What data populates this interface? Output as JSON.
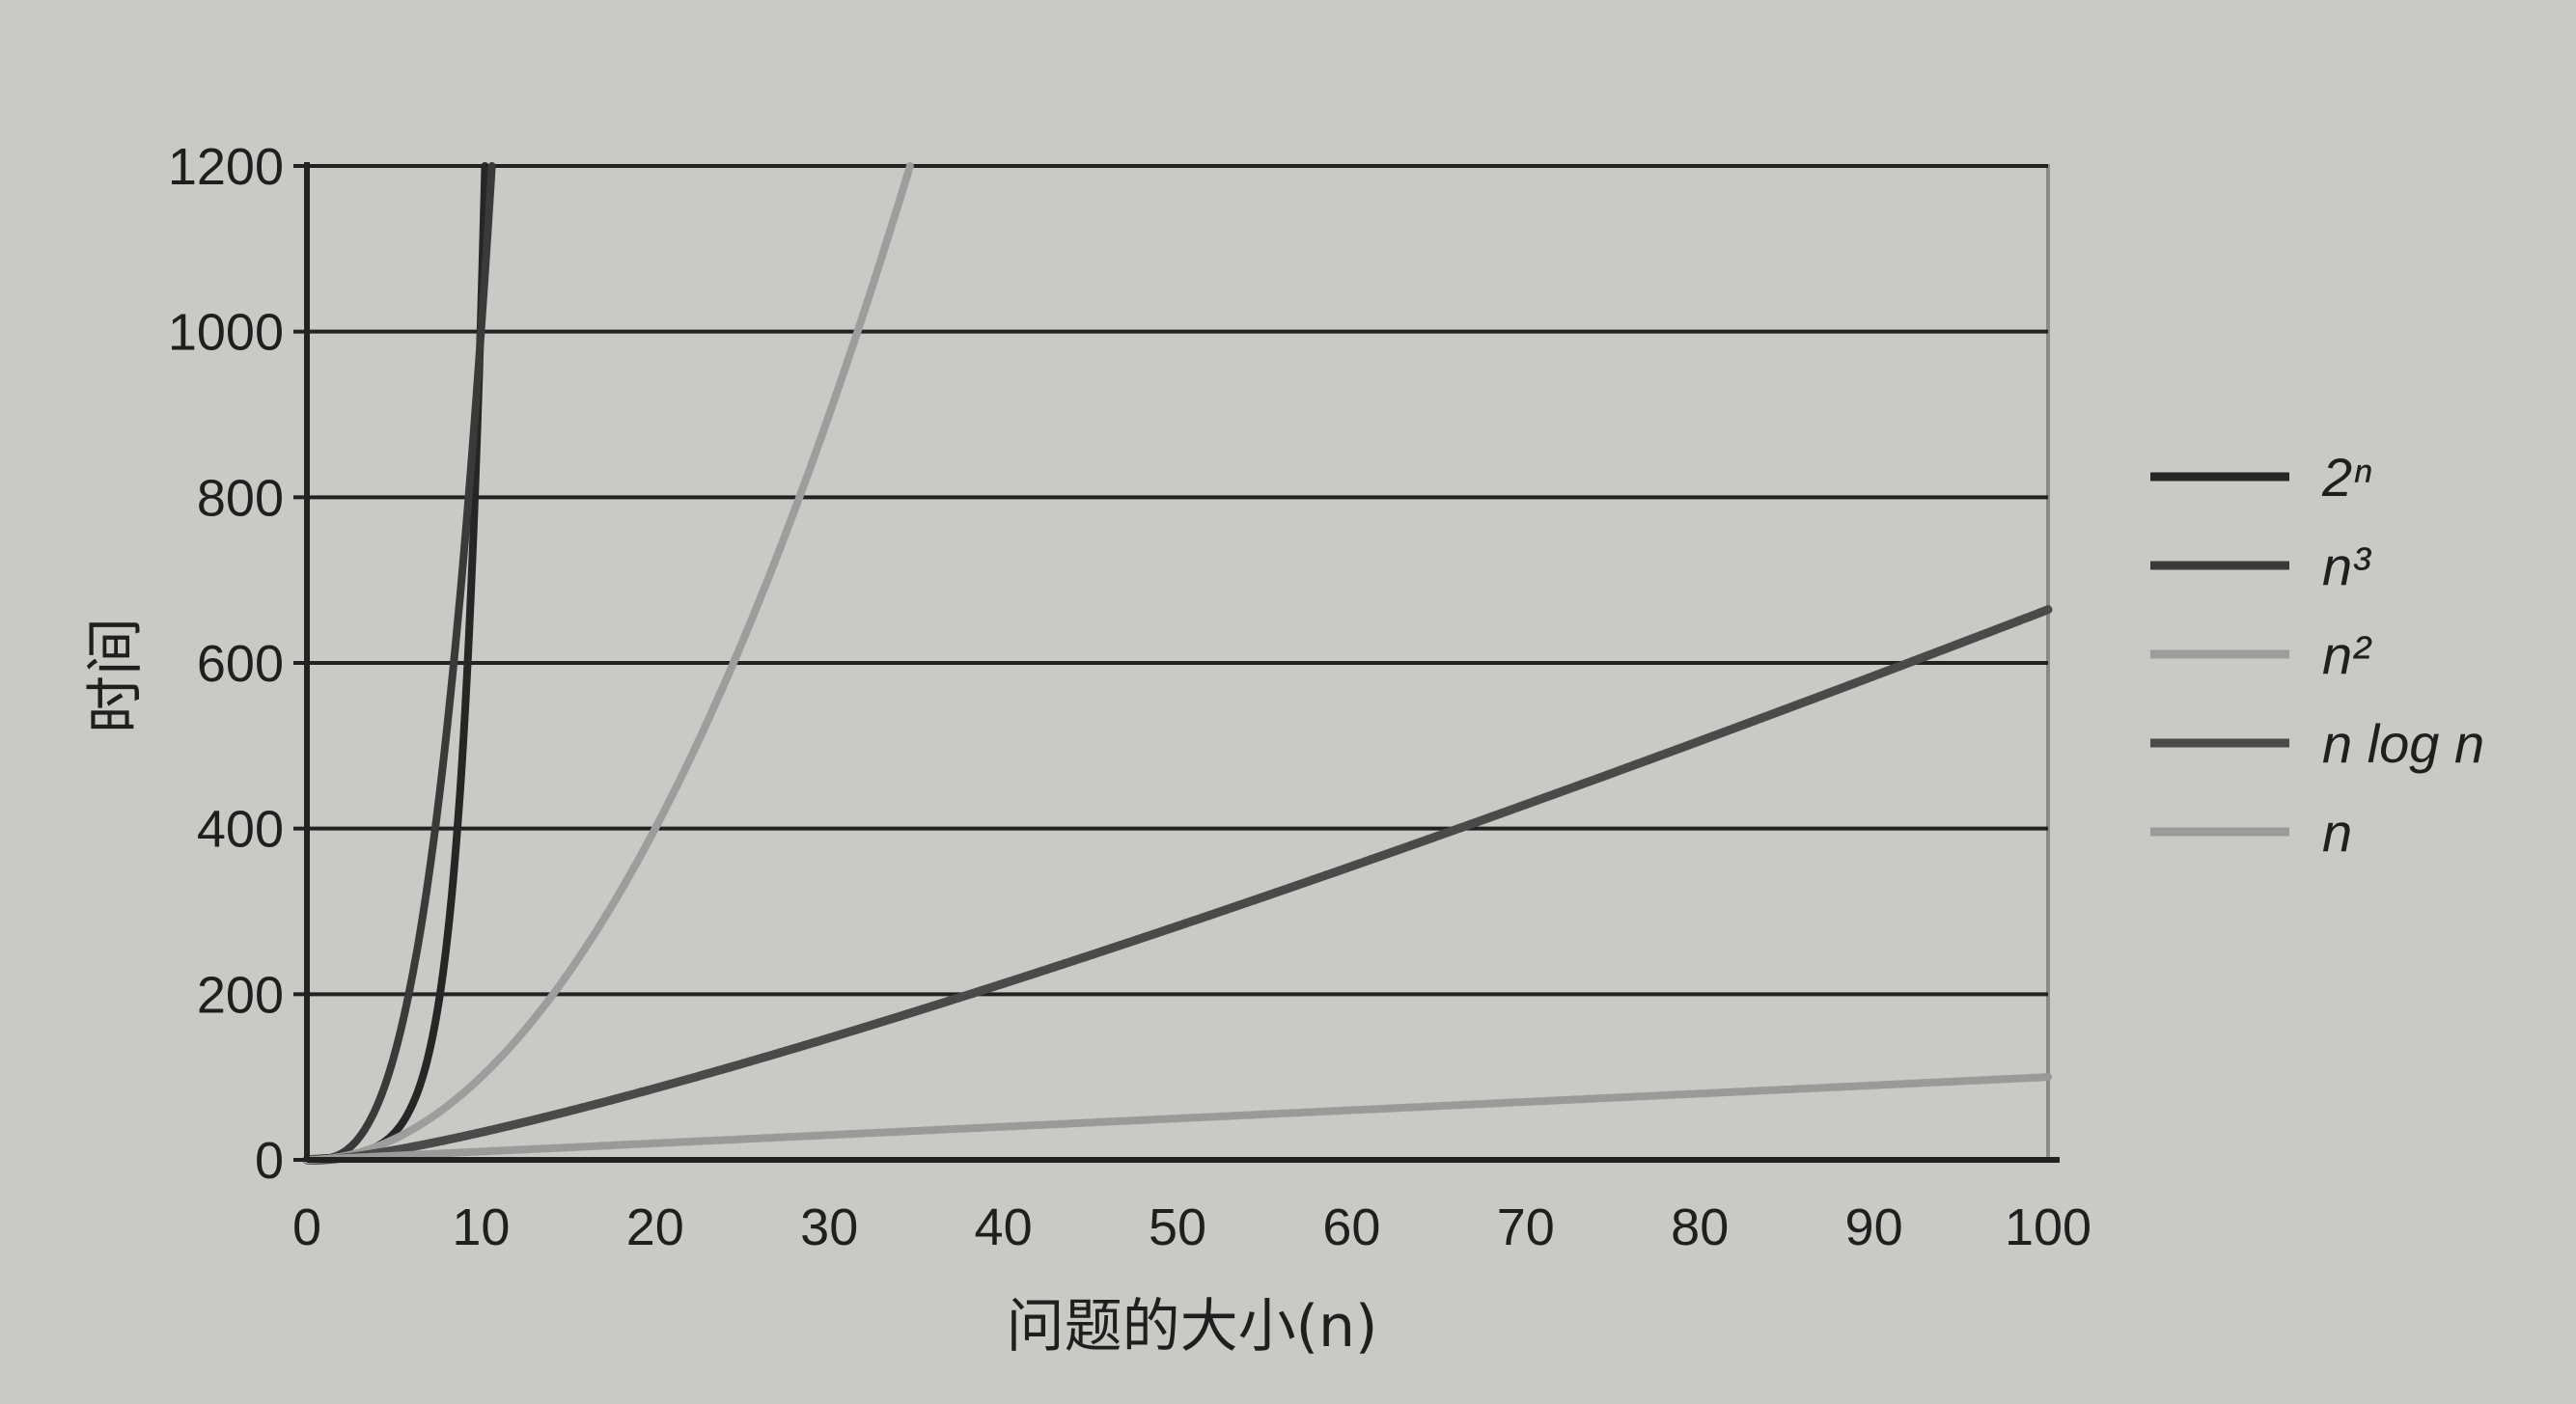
{
  "chart_data": {
    "type": "line",
    "xlabel": "问题的大小(n)",
    "ylabel": "时间",
    "xlim": [
      0,
      100
    ],
    "ylim": [
      0,
      1200
    ],
    "x_ticks": [
      0,
      10,
      20,
      30,
      40,
      50,
      60,
      70,
      80,
      90,
      100
    ],
    "y_ticks": [
      0,
      200,
      400,
      600,
      800,
      1000,
      1200
    ],
    "grid": "horizontal",
    "legend_position": "right",
    "series": [
      {
        "name": "2ⁿ",
        "func": "exp2",
        "color": "#262626",
        "width": 8
      },
      {
        "name": "n³",
        "func": "cube",
        "color": "#3a3a3a",
        "width": 8
      },
      {
        "name": "n²",
        "func": "square",
        "color": "#9d9d9d",
        "width": 8
      },
      {
        "name": "n log n",
        "func": "nlogn",
        "color": "#4a4a4a",
        "width": 9
      },
      {
        "name": "n",
        "func": "linear",
        "color": "#9a9a9a",
        "width": 8
      }
    ]
  }
}
